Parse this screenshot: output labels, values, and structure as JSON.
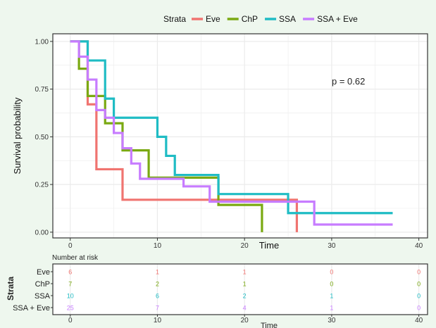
{
  "legend": {
    "title": "Strata"
  },
  "colors": {
    "Eve": "#f07470",
    "ChP": "#7aa912",
    "SSA": "#1fbcc4",
    "SSA + Eve": "#c77cff",
    "panel_bg": "#ffffff",
    "page_bg": "#eef7ee",
    "grid": "#ebebeb"
  },
  "chart_data": [
    {
      "type": "line",
      "subtype": "step",
      "title": "",
      "xlabel": "Time",
      "ylabel": "Survival probability",
      "xlim": [
        -2,
        41
      ],
      "ylim": [
        -0.03,
        1.04
      ],
      "x_ticks": [
        0,
        10,
        20,
        30,
        40
      ],
      "y_ticks": [
        0.0,
        0.25,
        0.5,
        0.75,
        1.0
      ],
      "y_tick_labels": [
        "0.00",
        "0.25",
        "0.50",
        "0.75",
        "1.00"
      ],
      "grid": true,
      "legend_position": "top",
      "annotation": "p = 0.62",
      "series": [
        {
          "name": "Eve",
          "x": [
            0,
            2,
            3,
            6,
            26
          ],
          "y": [
            1.0,
            0.67,
            0.33,
            0.17,
            0.0
          ]
        },
        {
          "name": "ChP",
          "x": [
            0,
            1,
            2,
            4,
            6,
            9,
            17,
            22
          ],
          "y": [
            1.0,
            0.857,
            0.714,
            0.571,
            0.429,
            0.286,
            0.143,
            0.0
          ]
        },
        {
          "name": "SSA",
          "x": [
            0,
            2,
            4,
            5,
            10,
            11,
            12,
            17,
            25,
            37
          ],
          "y": [
            1.0,
            0.9,
            0.7,
            0.6,
            0.5,
            0.4,
            0.3,
            0.2,
            0.1,
            0.1
          ]
        },
        {
          "name": "SSA + Eve",
          "x": [
            0,
            1,
            2,
            3,
            4,
            5,
            6,
            7,
            8,
            13,
            16,
            28,
            37
          ],
          "y": [
            1.0,
            0.92,
            0.8,
            0.64,
            0.6,
            0.52,
            0.44,
            0.36,
            0.28,
            0.24,
            0.16,
            0.04,
            0.04
          ]
        }
      ]
    },
    {
      "type": "table",
      "title": "Number at risk",
      "xlabel": "Time",
      "ylabel": "Strata",
      "x_ticks": [
        0,
        10,
        20,
        30,
        40
      ],
      "rows": [
        {
          "name": "Eve",
          "values": [
            6,
            1,
            1,
            0,
            0
          ]
        },
        {
          "name": "ChP",
          "values": [
            7,
            2,
            1,
            0,
            0
          ]
        },
        {
          "name": "SSA",
          "values": [
            10,
            6,
            2,
            1,
            0
          ]
        },
        {
          "name": "SSA + Eve",
          "values": [
            25,
            7,
            4,
            1,
            0
          ]
        }
      ]
    }
  ]
}
